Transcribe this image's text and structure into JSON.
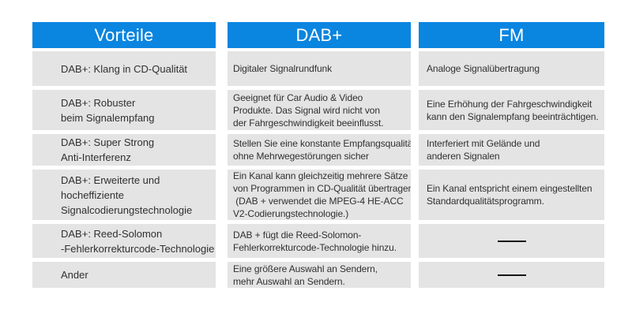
{
  "table": {
    "columns": [
      {
        "id": "vorteile",
        "label": "Vorteile"
      },
      {
        "id": "dab",
        "label": "DAB+"
      },
      {
        "id": "fm",
        "label": "FM"
      }
    ],
    "dash_symbol": "——",
    "rows": [
      {
        "vorteile": "DAB+: Klang in CD-Qualität",
        "dab": "Digitaler Signalrundfunk",
        "fm": "Analoge Signalübertragung"
      },
      {
        "vorteile": "DAB+: Robuster\nbeim Signalempfang",
        "dab": "Geeignet für Car Audio & Video\nProdukte. Das Signal wird nicht von\nder Fahrgeschwindigkeit beeinflusst.",
        "fm": "Eine Erhöhung der Fahrgeschwindigkeit\nkann den Signalempfang beeinträchtigen."
      },
      {
        "vorteile": "DAB+: Super Strong\nAnti-Interferenz",
        "dab": "Stellen Sie eine konstante Empfangsqualität\nohne Mehrwegestörungen sicher",
        "fm": "Interferiert mit Gelände und\nanderen Signalen"
      },
      {
        "vorteile": "DAB+: Erweiterte und\nhocheffiziente\nSignalcodierungstechnologie",
        "dab": "Ein Kanal kann gleichzeitig mehrere Sätze\nvon Programmen in CD-Qualität übertragen.\n (DAB + verwendet die MPEG-4 HE-ACC\nV2-Codierungstechnologie.)",
        "fm": "Ein Kanal entspricht einem eingestellten\nStandardqualitätsprogramm."
      },
      {
        "vorteile": "DAB+: Reed-Solomon\n-Fehlerkorrekturcode-Technologie",
        "dab": "DAB + fügt die Reed-Solomon-\nFehlerkorrekturcode-Technologie hinzu.",
        "fm": "——"
      },
      {
        "vorteile": "Ander",
        "dab": "Eine größere Auswahl an Sendern,\nmehr Auswahl an Sendern.",
        "fm": "——"
      }
    ]
  }
}
